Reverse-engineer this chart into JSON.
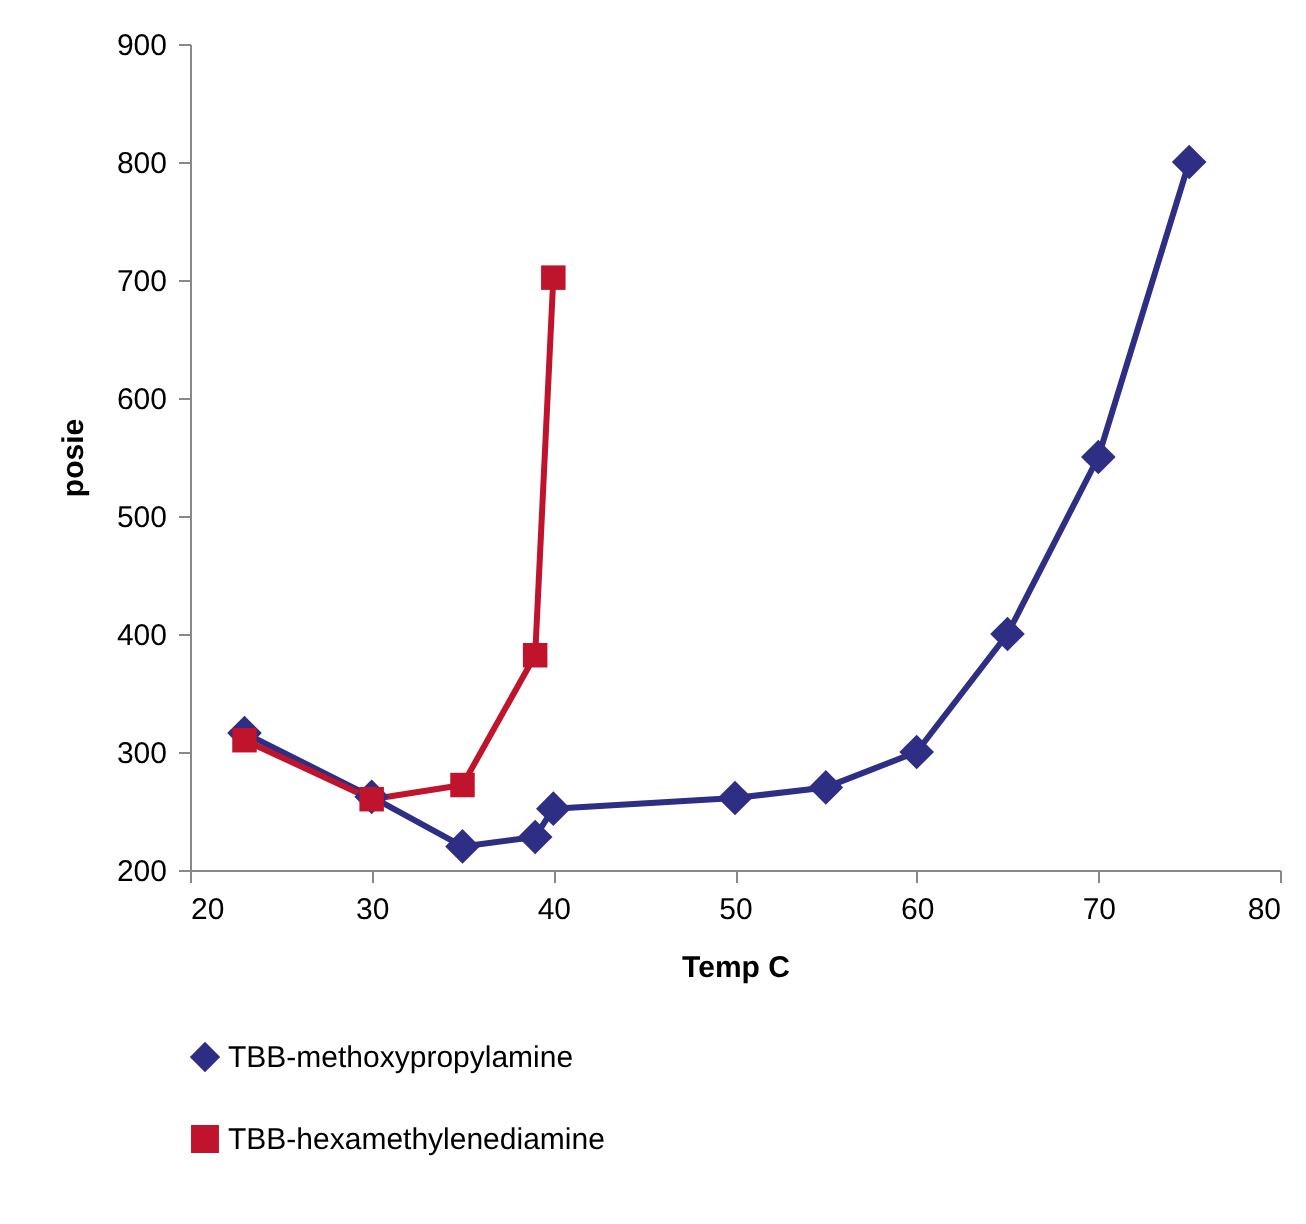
{
  "chart_data": {
    "type": "line",
    "xlabel": "Temp C",
    "ylabel": "posie",
    "xlim": [
      20,
      80
    ],
    "xticks": [
      20,
      30,
      40,
      50,
      60,
      70,
      80
    ],
    "ylim": [
      200,
      900
    ],
    "yticks": [
      200,
      300,
      400,
      500,
      600,
      700,
      800,
      900
    ],
    "grid": false,
    "legend": "bottom",
    "series": [
      {
        "name": "TBB-methoxypropylamine",
        "color": "#2e2e84",
        "marker": "diamond",
        "x": [
          23,
          30,
          35,
          39,
          40,
          50,
          55,
          60,
          65,
          70,
          75
        ],
        "values": [
          316,
          262,
          220,
          228,
          252,
          261,
          270,
          300,
          400,
          550,
          800
        ]
      },
      {
        "name": "TBB-hexamethylenediamine",
        "color": "#c0142c",
        "marker": "square",
        "x": [
          23,
          30,
          35,
          39,
          40
        ],
        "values": [
          310,
          260,
          272,
          382,
          702
        ]
      }
    ]
  }
}
